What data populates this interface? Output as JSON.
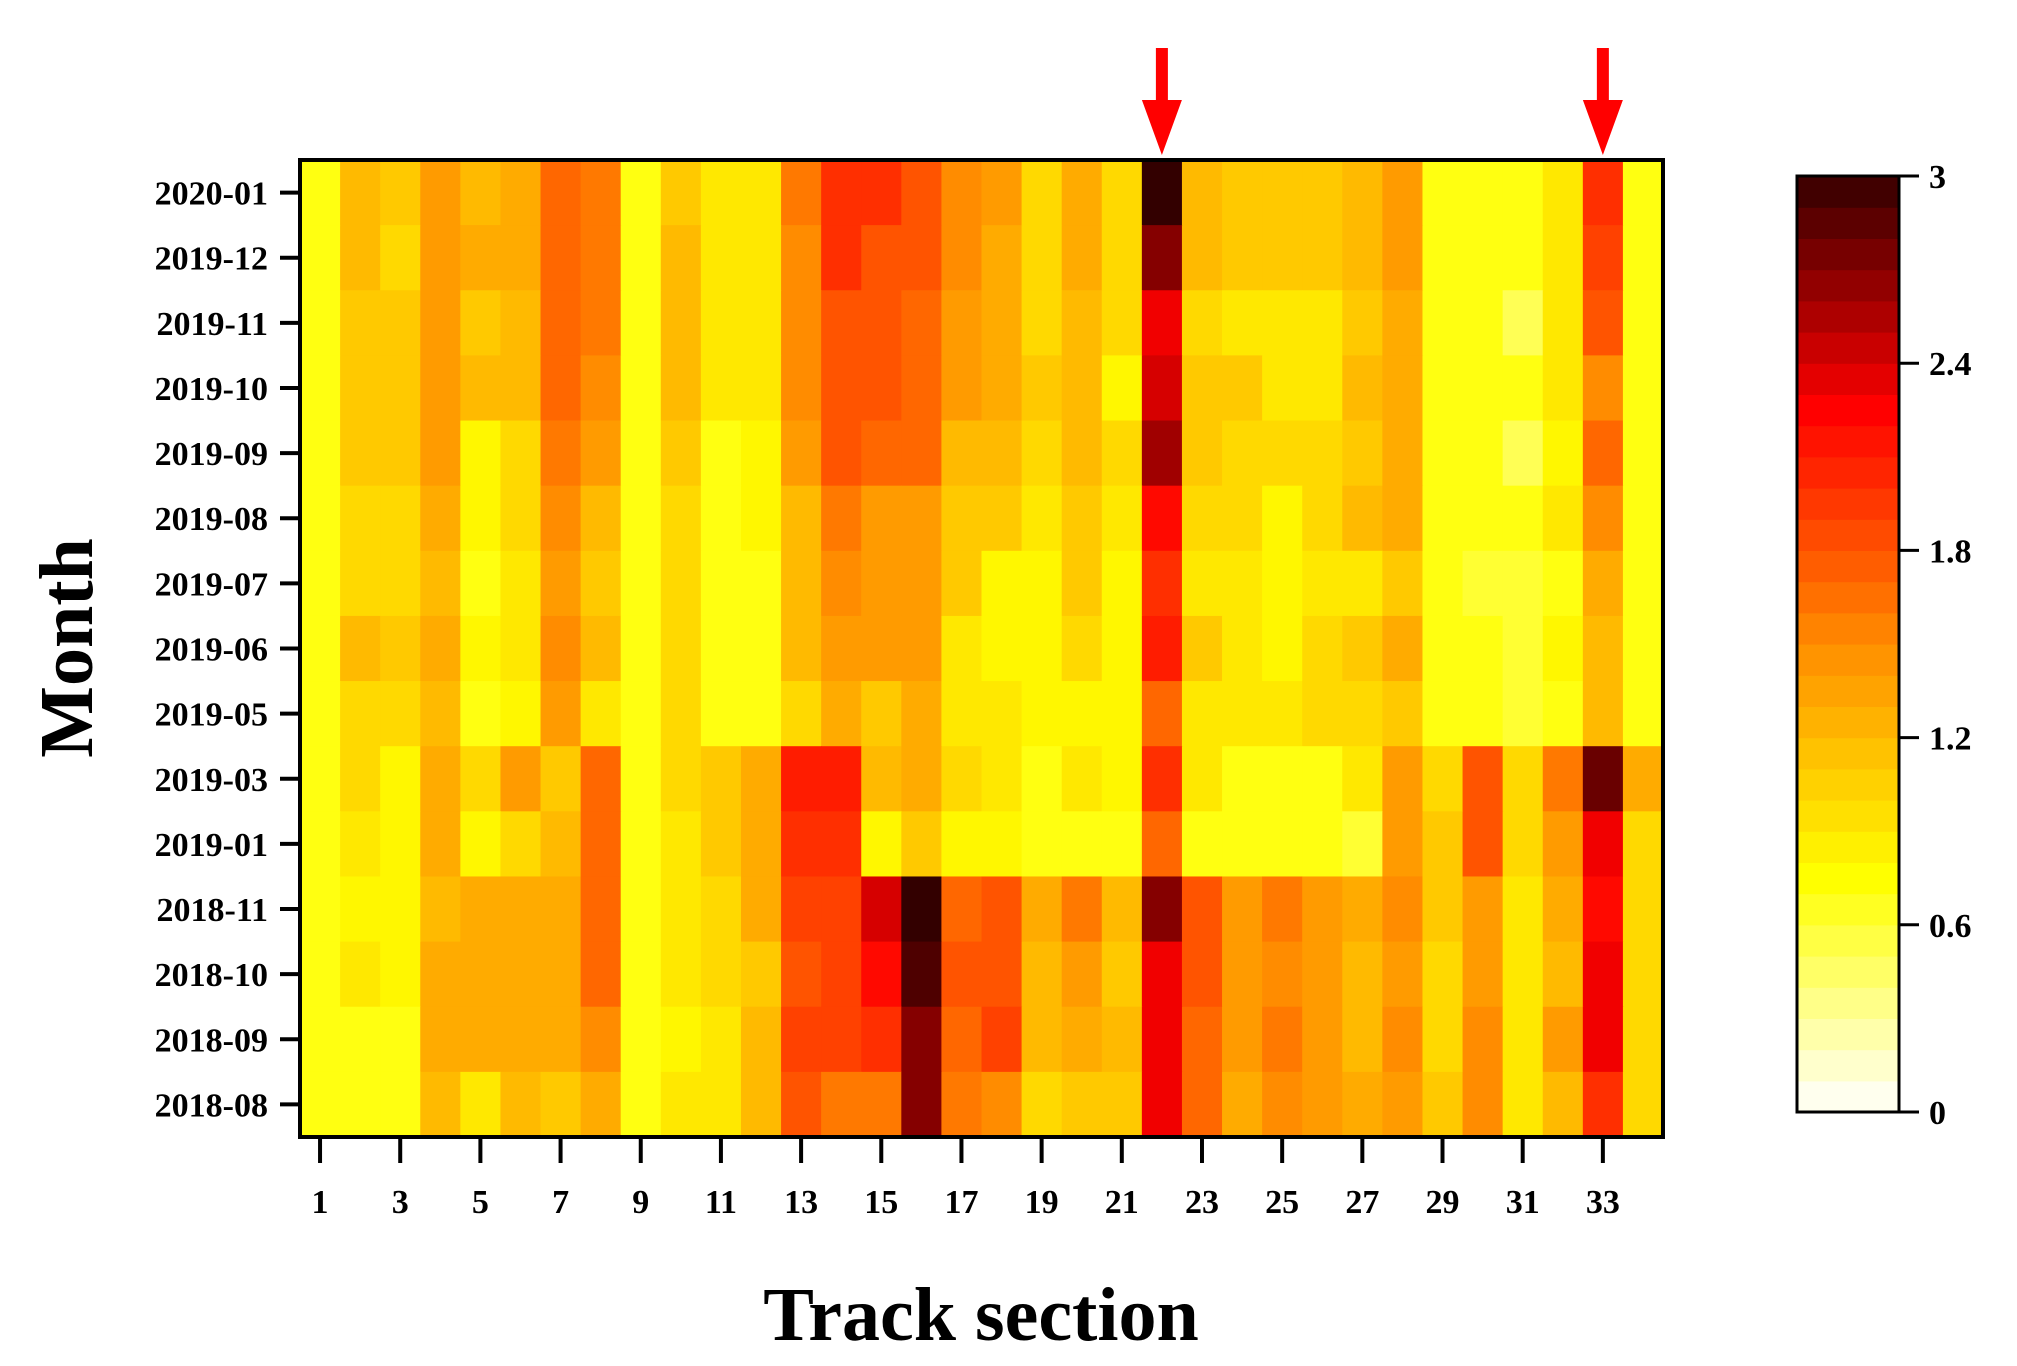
{
  "chart_data": {
    "type": "heatmap",
    "xlabel": "Track section",
    "ylabel": "Month",
    "x_tick_labels": [
      "1",
      "3",
      "5",
      "7",
      "9",
      "11",
      "13",
      "15",
      "17",
      "19",
      "21",
      "23",
      "25",
      "27",
      "29",
      "31",
      "33"
    ],
    "months": [
      "2020-01",
      "2019-12",
      "2019-11",
      "2019-10",
      "2019-09",
      "2019-08",
      "2019-07",
      "2019-06",
      "2019-05",
      "2019-03",
      "2019-01",
      "2018-11",
      "2018-10",
      "2018-09",
      "2018-08"
    ],
    "sections": [
      1,
      2,
      3,
      4,
      5,
      6,
      7,
      8,
      9,
      10,
      11,
      12,
      13,
      14,
      15,
      16,
      17,
      18,
      19,
      20,
      21,
      22,
      23,
      24,
      25,
      26,
      27,
      28,
      29,
      30,
      31,
      32,
      33,
      34
    ],
    "values": [
      [
        0.7,
        1.2,
        1.1,
        1.4,
        1.2,
        1.3,
        1.7,
        1.6,
        0.7,
        1.1,
        0.9,
        0.9,
        1.6,
        2.0,
        2.0,
        1.8,
        1.5,
        1.4,
        1.0,
        1.3,
        1.0,
        3.0,
        1.2,
        1.1,
        1.1,
        1.1,
        1.2,
        1.4,
        0.7,
        0.7,
        0.7,
        0.9,
        2.0,
        0.7
      ],
      [
        0.7,
        1.2,
        1.0,
        1.4,
        1.3,
        1.3,
        1.7,
        1.6,
        0.7,
        1.2,
        0.9,
        0.9,
        1.5,
        2.0,
        1.8,
        1.8,
        1.5,
        1.3,
        1.0,
        1.3,
        1.0,
        2.7,
        1.2,
        1.1,
        1.1,
        1.1,
        1.2,
        1.4,
        0.7,
        0.7,
        0.7,
        0.9,
        1.9,
        0.7
      ],
      [
        0.7,
        1.1,
        1.1,
        1.4,
        1.1,
        1.2,
        1.7,
        1.6,
        0.7,
        1.2,
        0.9,
        0.9,
        1.5,
        1.8,
        1.8,
        1.7,
        1.4,
        1.3,
        1.0,
        1.2,
        1.0,
        2.3,
        1.0,
        0.9,
        0.9,
        0.9,
        1.1,
        1.3,
        0.7,
        0.7,
        0.5,
        0.9,
        1.8,
        0.7
      ],
      [
        0.7,
        1.1,
        1.1,
        1.4,
        1.2,
        1.2,
        1.7,
        1.5,
        0.7,
        1.2,
        0.9,
        0.9,
        1.5,
        1.8,
        1.8,
        1.7,
        1.4,
        1.3,
        1.1,
        1.2,
        0.8,
        2.4,
        1.1,
        1.1,
        0.9,
        0.9,
        1.2,
        1.3,
        0.7,
        0.7,
        0.7,
        0.9,
        1.5,
        0.7
      ],
      [
        0.7,
        1.1,
        1.1,
        1.4,
        0.8,
        1.0,
        1.6,
        1.4,
        0.7,
        1.1,
        0.7,
        0.8,
        1.4,
        1.8,
        1.7,
        1.7,
        1.2,
        1.2,
        1.0,
        1.2,
        1.0,
        2.6,
        1.1,
        1.0,
        1.0,
        1.0,
        1.1,
        1.3,
        0.7,
        0.7,
        0.5,
        0.8,
        1.7,
        0.7
      ],
      [
        0.7,
        1.0,
        1.0,
        1.3,
        0.8,
        1.0,
        1.5,
        1.2,
        0.7,
        1.0,
        0.7,
        0.8,
        1.2,
        1.6,
        1.4,
        1.4,
        1.1,
        1.1,
        0.9,
        1.1,
        0.9,
        2.2,
        1.0,
        1.0,
        0.8,
        1.0,
        1.2,
        1.3,
        0.7,
        0.7,
        0.7,
        0.9,
        1.5,
        0.7
      ],
      [
        0.7,
        1.0,
        1.0,
        1.2,
        0.7,
        0.9,
        1.4,
        1.1,
        0.7,
        1.0,
        0.7,
        0.7,
        1.2,
        1.5,
        1.4,
        1.4,
        1.1,
        0.8,
        0.8,
        1.1,
        0.8,
        2.0,
        0.9,
        0.9,
        0.8,
        0.9,
        0.9,
        1.1,
        0.7,
        0.6,
        0.6,
        0.7,
        1.3,
        0.7
      ],
      [
        0.7,
        1.2,
        1.1,
        1.3,
        0.8,
        0.9,
        1.5,
        1.2,
        0.7,
        1.0,
        0.7,
        0.7,
        1.2,
        1.4,
        1.4,
        1.4,
        0.9,
        0.8,
        0.8,
        1.0,
        0.8,
        2.1,
        1.1,
        0.9,
        0.8,
        1.0,
        1.1,
        1.3,
        0.7,
        0.7,
        0.6,
        0.8,
        1.2,
        0.7
      ],
      [
        0.7,
        1.0,
        1.0,
        1.2,
        0.7,
        0.8,
        1.4,
        0.9,
        0.7,
        1.0,
        0.7,
        0.7,
        1.0,
        1.3,
        1.1,
        1.3,
        0.9,
        0.9,
        0.8,
        0.8,
        0.8,
        1.7,
        0.9,
        0.9,
        0.9,
        1.0,
        1.0,
        1.1,
        0.7,
        0.7,
        0.6,
        0.7,
        1.2,
        0.7
      ],
      [
        0.7,
        1.0,
        0.8,
        1.3,
        1.0,
        1.4,
        1.1,
        1.7,
        0.7,
        1.0,
        1.1,
        1.3,
        2.1,
        2.1,
        1.2,
        1.3,
        1.0,
        0.9,
        0.7,
        0.9,
        0.8,
        2.0,
        0.9,
        0.7,
        0.7,
        0.7,
        0.9,
        1.4,
        1.0,
        1.8,
        1.0,
        1.6,
        2.8,
        1.3
      ],
      [
        0.7,
        0.9,
        0.8,
        1.3,
        0.8,
        1.0,
        1.2,
        1.7,
        0.7,
        0.9,
        1.1,
        1.3,
        2.0,
        2.0,
        0.8,
        1.1,
        0.8,
        0.8,
        0.7,
        0.7,
        0.7,
        1.7,
        0.7,
        0.7,
        0.7,
        0.7,
        0.6,
        1.4,
        1.1,
        1.8,
        1.0,
        1.4,
        2.3,
        1.0
      ],
      [
        0.7,
        0.8,
        0.8,
        1.2,
        1.3,
        1.3,
        1.3,
        1.7,
        0.7,
        0.9,
        1.0,
        1.3,
        1.9,
        1.9,
        2.4,
        3.0,
        1.7,
        1.8,
        1.3,
        1.6,
        1.2,
        2.7,
        1.8,
        1.4,
        1.6,
        1.4,
        1.3,
        1.5,
        1.1,
        1.4,
        0.9,
        1.3,
        2.2,
        1.0
      ],
      [
        0.7,
        0.9,
        0.8,
        1.3,
        1.3,
        1.3,
        1.3,
        1.7,
        0.7,
        0.9,
        1.0,
        1.1,
        1.8,
        1.9,
        2.2,
        2.9,
        1.8,
        1.8,
        1.2,
        1.4,
        1.1,
        2.3,
        1.8,
        1.4,
        1.5,
        1.4,
        1.2,
        1.4,
        1.0,
        1.4,
        0.9,
        1.2,
        2.3,
        1.0
      ],
      [
        0.7,
        0.7,
        0.7,
        1.3,
        1.3,
        1.3,
        1.3,
        1.5,
        0.7,
        0.8,
        0.9,
        1.2,
        1.9,
        1.9,
        2.0,
        2.7,
        1.7,
        1.9,
        1.2,
        1.3,
        1.2,
        2.3,
        1.7,
        1.4,
        1.6,
        1.4,
        1.2,
        1.5,
        1.0,
        1.5,
        0.9,
        1.4,
        2.3,
        1.0
      ],
      [
        0.7,
        0.7,
        0.7,
        1.2,
        0.9,
        1.2,
        1.1,
        1.3,
        0.7,
        0.9,
        0.9,
        1.2,
        1.8,
        1.6,
        1.6,
        2.7,
        1.6,
        1.5,
        1.0,
        1.1,
        1.1,
        2.3,
        1.7,
        1.3,
        1.5,
        1.4,
        1.3,
        1.4,
        1.1,
        1.5,
        0.9,
        1.2,
        2.0,
        1.0
      ]
    ],
    "zlim": [
      0,
      3
    ],
    "colorbar_ticks": [
      "0",
      "0.6",
      "1.2",
      "1.8",
      "2.4",
      "3"
    ],
    "colorbar_tick_values": [
      0,
      0.6,
      1.2,
      1.8,
      2.4,
      3
    ],
    "colormap": [
      "#ffffff",
      "#ffff00",
      "#ff8c00",
      "#ff0000",
      "#330000"
    ],
    "highlighted_sections": [
      22,
      33
    ],
    "arrow_color": "#ff0000"
  }
}
